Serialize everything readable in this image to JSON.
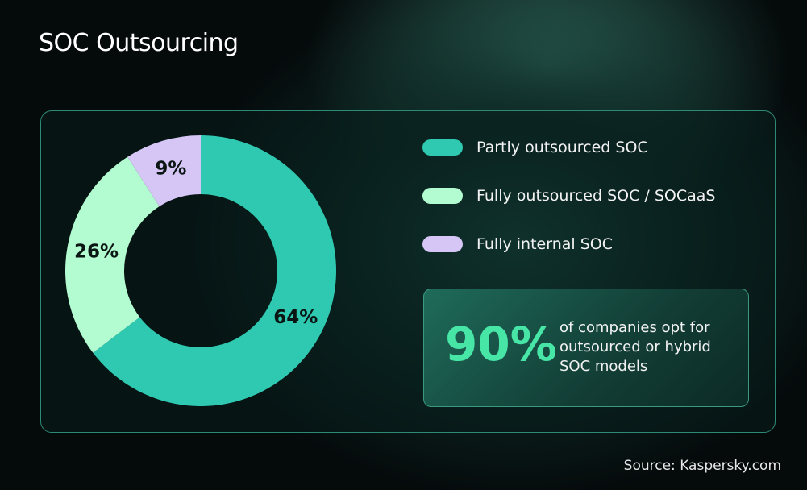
{
  "chart_data": {
    "type": "donut",
    "title": "SOC Outsourcing",
    "categories": [
      "Partly outsourced SOC",
      "Fully outsourced SOC / SOCaaS",
      "Fully internal SOC"
    ],
    "values": [
      64,
      26,
      9
    ],
    "value_labels": [
      "64%",
      "26%",
      "9%"
    ],
    "colors": [
      "#2ec9b0",
      "#b3fbd0",
      "#d5c6f6"
    ],
    "annotation": {
      "value": "90%",
      "text": "of companies opt for outsourced or hybrid SOC models"
    },
    "source": "Source: Kaspersky.com"
  }
}
